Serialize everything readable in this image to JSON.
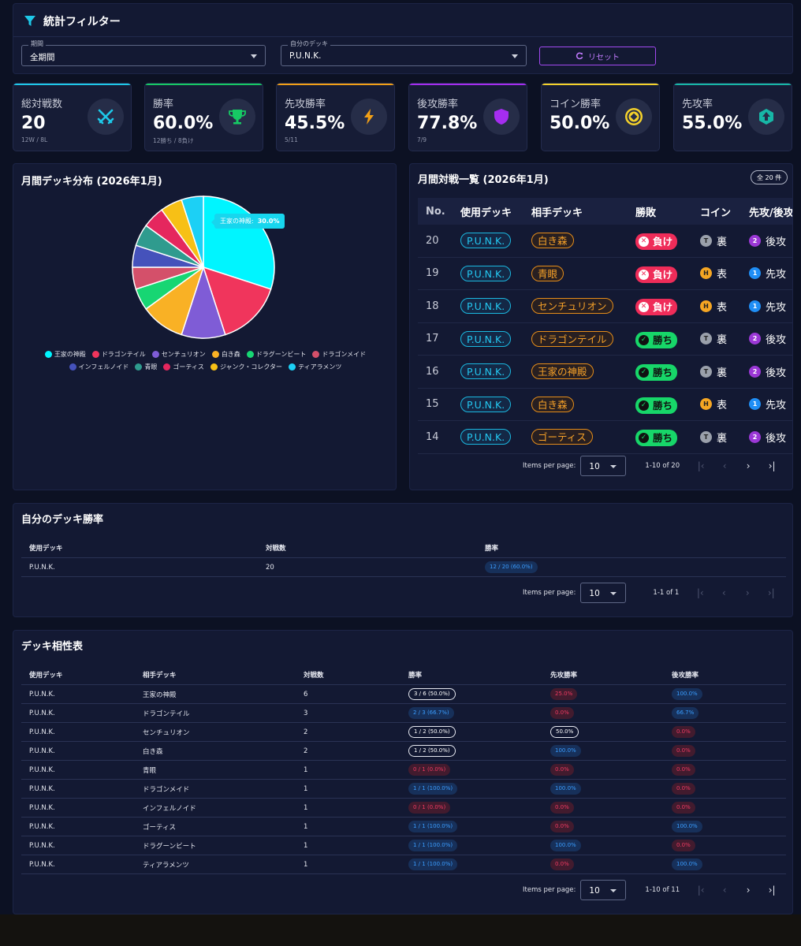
{
  "filter": {
    "title": "統計フィルター",
    "period_label": "期間",
    "period_value": "全期間",
    "deck_label": "自分のデッキ",
    "deck_value": "P.U.N.K.",
    "reset_label": "リセット"
  },
  "stats": [
    {
      "label": "総対戦数",
      "value": "20",
      "sub": "12W / 8L",
      "color": "#1ec8e8",
      "icon": "crossed-swords-icon"
    },
    {
      "label": "勝率",
      "value": "60.0%",
      "sub": "12勝ち / 8負け",
      "color": "#16c964",
      "icon": "trophy-icon"
    },
    {
      "label": "先攻勝率",
      "value": "45.5%",
      "sub": "5/11",
      "color": "#f2a016",
      "icon": "lightning-icon"
    },
    {
      "label": "後攻勝率",
      "value": "77.8%",
      "sub": "7/9",
      "color": "#a52df0",
      "icon": "shield-icon"
    },
    {
      "label": "コイン勝率",
      "value": "50.0%",
      "sub": "",
      "color": "#f5d22a",
      "icon": "coin-icon"
    },
    {
      "label": "先攻率",
      "value": "55.0%",
      "sub": "",
      "color": "#17b7a6",
      "icon": "up-arrow-icon"
    }
  ],
  "pie": {
    "title": "月間デッキ分布 (2026年1月)",
    "tooltip_label": "王家の神殿:",
    "tooltip_value": "30.0%"
  },
  "chart_data": {
    "type": "pie",
    "title": "月間デッキ分布 (2026年1月)",
    "legend_position": "bottom",
    "slices": [
      {
        "name": "王家の神殿",
        "value": 6,
        "color": "#00f5ff"
      },
      {
        "name": "ドラゴンテイル",
        "value": 3,
        "color": "#f0355c"
      },
      {
        "name": "センチュリオン",
        "value": 2,
        "color": "#7f5cd6"
      },
      {
        "name": "白き森",
        "value": 2,
        "color": "#f9b125"
      },
      {
        "name": "ドラグーンビート",
        "value": 1,
        "color": "#17d673"
      },
      {
        "name": "ドラゴンメイド",
        "value": 1,
        "color": "#d4506a"
      },
      {
        "name": "インフェルノイド",
        "value": 1,
        "color": "#4552bb"
      },
      {
        "name": "青眼",
        "value": 1,
        "color": "#2f9b8e"
      },
      {
        "name": "ゴーティス",
        "value": 1,
        "color": "#e5275e"
      },
      {
        "name": "ジャンク・コレクター",
        "value": 1,
        "color": "#f7c016"
      },
      {
        "name": "ティアラメンツ",
        "value": 1,
        "color": "#1cd0f5"
      }
    ]
  },
  "matches": {
    "title": "月間対戦一覧 (2026年1月)",
    "count_badge": "全 20 件",
    "headers": [
      "No.",
      "使用デッキ",
      "相手デッキ",
      "勝敗",
      "コイン",
      "先攻/後攻"
    ],
    "rows": [
      {
        "no": "20",
        "my": "P.U.N.K.",
        "opp": "白き森",
        "result": "負け",
        "win": false,
        "coin_mark": "T",
        "coin": "裏",
        "turn_mark": "2",
        "turn": "後攻"
      },
      {
        "no": "19",
        "my": "P.U.N.K.",
        "opp": "青眼",
        "result": "負け",
        "win": false,
        "coin_mark": "H",
        "coin": "表",
        "turn_mark": "1",
        "turn": "先攻"
      },
      {
        "no": "18",
        "my": "P.U.N.K.",
        "opp": "センチュリオン",
        "result": "負け",
        "win": false,
        "coin_mark": "H",
        "coin": "表",
        "turn_mark": "1",
        "turn": "先攻"
      },
      {
        "no": "17",
        "my": "P.U.N.K.",
        "opp": "ドラゴンテイル",
        "result": "勝ち",
        "win": true,
        "coin_mark": "T",
        "coin": "裏",
        "turn_mark": "2",
        "turn": "後攻"
      },
      {
        "no": "16",
        "my": "P.U.N.K.",
        "opp": "王家の神殿",
        "result": "勝ち",
        "win": true,
        "coin_mark": "T",
        "coin": "裏",
        "turn_mark": "2",
        "turn": "後攻"
      },
      {
        "no": "15",
        "my": "P.U.N.K.",
        "opp": "白き森",
        "result": "勝ち",
        "win": true,
        "coin_mark": "H",
        "coin": "表",
        "turn_mark": "1",
        "turn": "先攻"
      },
      {
        "no": "14",
        "my": "P.U.N.K.",
        "opp": "ゴーティス",
        "result": "勝ち",
        "win": true,
        "coin_mark": "T",
        "coin": "裏",
        "turn_mark": "2",
        "turn": "後攻"
      }
    ],
    "pager": {
      "label": "Items per page:",
      "size": "10",
      "range": "1-10 of 20"
    }
  },
  "own": {
    "title": "自分のデッキ勝率",
    "headers": [
      "使用デッキ",
      "対戦数",
      "勝率"
    ],
    "rows": [
      {
        "deck": "P.U.N.K.",
        "count": "20",
        "rate": "12 / 20 (60.0%)",
        "rate_color": "blue"
      }
    ],
    "pager": {
      "label": "Items per page:",
      "size": "10",
      "range": "1-1 of 1"
    }
  },
  "matchup": {
    "title": "デッキ相性表",
    "headers": [
      "使用デッキ",
      "相手デッキ",
      "対戦数",
      "勝率",
      "先攻勝率",
      "後攻勝率"
    ],
    "rows": [
      {
        "deck": "P.U.N.K.",
        "opp": "王家の神殿",
        "count": "6",
        "rate": "3 / 6 (50.0%)",
        "rate_c": "neutral",
        "first": "25.0%",
        "first_c": "red",
        "second": "100.0%",
        "second_c": "blue"
      },
      {
        "deck": "P.U.N.K.",
        "opp": "ドラゴンテイル",
        "count": "3",
        "rate": "2 / 3 (66.7%)",
        "rate_c": "blue",
        "first": "0.0%",
        "first_c": "red",
        "second": "66.7%",
        "second_c": "blue"
      },
      {
        "deck": "P.U.N.K.",
        "opp": "センチュリオン",
        "count": "2",
        "rate": "1 / 2 (50.0%)",
        "rate_c": "neutral",
        "first": "50.0%",
        "first_c": "neutral",
        "second": "0.0%",
        "second_c": "red"
      },
      {
        "deck": "P.U.N.K.",
        "opp": "白き森",
        "count": "2",
        "rate": "1 / 2 (50.0%)",
        "rate_c": "neutral",
        "first": "100.0%",
        "first_c": "blue",
        "second": "0.0%",
        "second_c": "red"
      },
      {
        "deck": "P.U.N.K.",
        "opp": "青眼",
        "count": "1",
        "rate": "0 / 1 (0.0%)",
        "rate_c": "red",
        "first": "0.0%",
        "first_c": "red",
        "second": "0.0%",
        "second_c": "red"
      },
      {
        "deck": "P.U.N.K.",
        "opp": "ドラゴンメイド",
        "count": "1",
        "rate": "1 / 1 (100.0%)",
        "rate_c": "blue",
        "first": "100.0%",
        "first_c": "blue",
        "second": "0.0%",
        "second_c": "red"
      },
      {
        "deck": "P.U.N.K.",
        "opp": "インフェルノイド",
        "count": "1",
        "rate": "0 / 1 (0.0%)",
        "rate_c": "red",
        "first": "0.0%",
        "first_c": "red",
        "second": "0.0%",
        "second_c": "red"
      },
      {
        "deck": "P.U.N.K.",
        "opp": "ゴーティス",
        "count": "1",
        "rate": "1 / 1 (100.0%)",
        "rate_c": "blue",
        "first": "0.0%",
        "first_c": "red",
        "second": "100.0%",
        "second_c": "blue"
      },
      {
        "deck": "P.U.N.K.",
        "opp": "ドラグーンビート",
        "count": "1",
        "rate": "1 / 1 (100.0%)",
        "rate_c": "blue",
        "first": "100.0%",
        "first_c": "blue",
        "second": "0.0%",
        "second_c": "red"
      },
      {
        "deck": "P.U.N.K.",
        "opp": "ティアラメンツ",
        "count": "1",
        "rate": "1 / 1 (100.0%)",
        "rate_c": "blue",
        "first": "0.0%",
        "first_c": "red",
        "second": "100.0%",
        "second_c": "blue"
      }
    ],
    "pager": {
      "label": "Items per page:",
      "size": "10",
      "range": "1-10 of 11"
    }
  }
}
